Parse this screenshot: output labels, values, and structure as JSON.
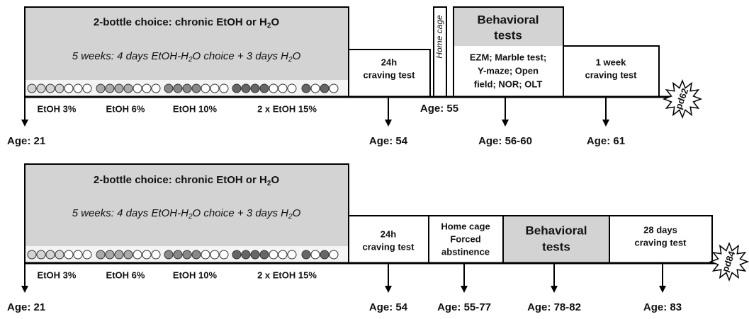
{
  "timelines": [
    {
      "block": {
        "title": [
          "2-bottle choice: chronic EtOH or H",
          "2",
          "O"
        ],
        "subtitle": [
          "5 weeks: 4 days EtOH-H",
          "2",
          "O choice + 3 days H",
          "2",
          "O"
        ],
        "phases": [
          "EtOH 3%",
          "EtOH 6%",
          "EtOH 10%",
          "2 x EtOH 15%"
        ]
      },
      "craving_24h": [
        "24h",
        "craving test"
      ],
      "home_cage": [
        "Home cage"
      ],
      "home_cage_age": "Age: 55",
      "behavioral": {
        "title": [
          "Behavioral",
          "tests"
        ],
        "details": [
          "EZM; Marble test;",
          "Y-maze; Open",
          "field; NOR; OLT"
        ]
      },
      "craving_end": [
        "1 week",
        "craving test"
      ],
      "ages": [
        "Age: 21",
        "Age: 54",
        "Age: 56-60",
        "Age: 61"
      ],
      "end": "pd62"
    },
    {
      "block": {
        "title": [
          "2-bottle choice: chronic EtOH or H",
          "2",
          "O"
        ],
        "subtitle": [
          "5 weeks: 4 days EtOH-H",
          "2",
          "O choice + 3 days H",
          "2",
          "O"
        ],
        "phases": [
          "EtOH 3%",
          "EtOH 6%",
          "EtOH 10%",
          "2 x EtOH 15%"
        ]
      },
      "craving_24h": [
        "24h",
        "craving test"
      ],
      "home_cage": [
        "Home cage",
        "Forced",
        "abstinence"
      ],
      "behavioral": {
        "title": [
          "Behavioral",
          "tests"
        ]
      },
      "craving_end": [
        "28 days",
        "craving test"
      ],
      "ages": [
        "Age: 21",
        "Age: 54",
        "Age: 55-77",
        "Age: 78-82",
        "Age: 83"
      ],
      "end": "pd84"
    }
  ]
}
